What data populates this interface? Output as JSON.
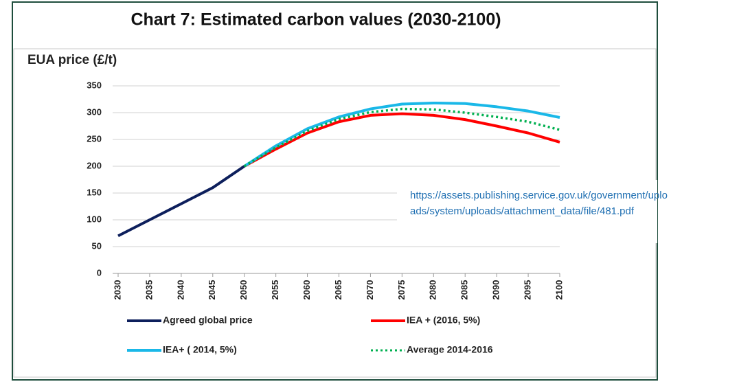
{
  "chart_data": {
    "type": "line",
    "title": "Chart 7: Estimated carbon values (2030-2100)",
    "ylabel": "EUA price (£/t)",
    "annotations": [
      "https://assets.publishing.service.gov.uk/government/uplo",
      "ads/system/uploads/attachment_data/file/481.pdf"
    ],
    "x": [
      2030,
      2035,
      2040,
      2045,
      2050,
      2055,
      2060,
      2065,
      2070,
      2075,
      2080,
      2085,
      2090,
      2095,
      2100
    ],
    "xlim": [
      2030,
      2100
    ],
    "xticks": [
      2030,
      2035,
      2040,
      2045,
      2050,
      2055,
      2060,
      2065,
      2070,
      2075,
      2080,
      2085,
      2090,
      2095,
      2100
    ],
    "ylim": [
      0,
      350
    ],
    "yticks": [
      0,
      50,
      100,
      150,
      200,
      250,
      300,
      350
    ],
    "grid": true,
    "series": [
      {
        "name": "Agreed global price",
        "color": "#0d1f5c",
        "values": [
          70,
          100,
          130,
          160,
          200,
          null,
          null,
          null,
          null,
          null,
          null,
          null,
          null,
          null,
          null
        ]
      },
      {
        "name": "IEA + (2016, 5%)",
        "color": "#ff0000",
        "values": [
          null,
          null,
          null,
          null,
          200,
          232,
          262,
          283,
          295,
          298,
          295,
          287,
          275,
          262,
          245
        ]
      },
      {
        "name": "IEA+ ( 2014, 5%)",
        "color": "#1ab8e8",
        "values": [
          null,
          null,
          null,
          null,
          200,
          238,
          270,
          292,
          307,
          316,
          318,
          317,
          311,
          303,
          291
        ]
      },
      {
        "name": "Average 2014-2016",
        "color": "#00b050",
        "dashed": true,
        "values": [
          null,
          null,
          null,
          null,
          200,
          235,
          266,
          288,
          301,
          307,
          306,
          300,
          292,
          283,
          268
        ]
      }
    ]
  }
}
